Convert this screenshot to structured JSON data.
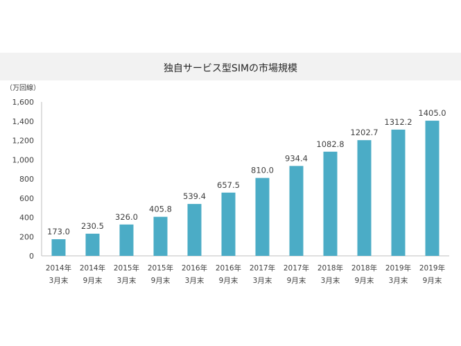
{
  "chart_data": {
    "type": "bar",
    "title": "独自サービス型SIMの市場規模",
    "ylabel": "（万回線）",
    "xlabel": "",
    "ylim": [
      0,
      1600
    ],
    "yticks": [
      "0",
      "200",
      "400",
      "600",
      "800",
      "1,000",
      "1,200",
      "1,400",
      "1,600"
    ],
    "grid": false,
    "legend": "none",
    "bar_color": "#4bacc6",
    "categories": [
      [
        "2014年",
        "3月末"
      ],
      [
        "2014年",
        "9月末"
      ],
      [
        "2015年",
        "3月末"
      ],
      [
        "2015年",
        "9月末"
      ],
      [
        "2016年",
        "3月末"
      ],
      [
        "2016年",
        "9月末"
      ],
      [
        "2017年",
        "3月末"
      ],
      [
        "2017年",
        "9月末"
      ],
      [
        "2018年",
        "3月末"
      ],
      [
        "2018年",
        "9月末"
      ],
      [
        "2019年",
        "3月末"
      ],
      [
        "2019年",
        "9月末"
      ]
    ],
    "values": [
      173.0,
      230.5,
      326.0,
      405.8,
      539.4,
      657.5,
      810.0,
      934.4,
      1082.8,
      1202.7,
      1312.2,
      1405.0
    ],
    "value_labels": [
      "173.0",
      "230.5",
      "326.0",
      "405.8",
      "539.4",
      "657.5",
      "810.0",
      "934.4",
      "1082.8",
      "1202.7",
      "1312.2",
      "1405.0"
    ]
  }
}
